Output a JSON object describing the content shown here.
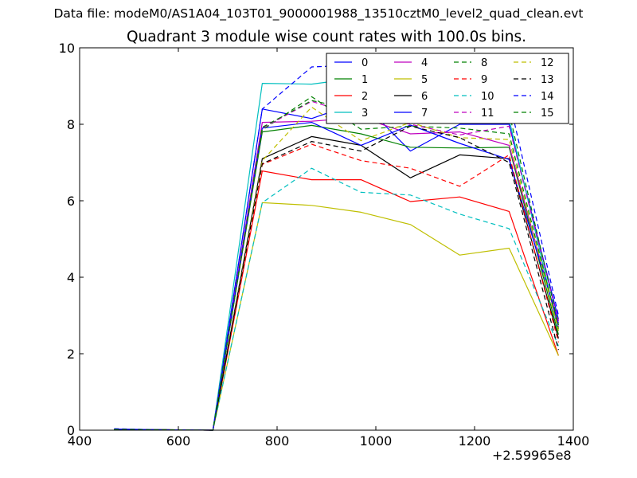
{
  "suptitle": "Data file: modeM0/AS1A04_103T01_9000001988_13510cztM0_level2_quad_clean.evt",
  "chart_data": {
    "type": "line",
    "title": "Quadrant 3 module wise count rates with 100.0s bins.",
    "xlabel": "",
    "ylabel": "",
    "x_offset_label": "+2.59965e8",
    "xlim": [
      400,
      1400
    ],
    "ylim": [
      0,
      10
    ],
    "xticks": [
      "400",
      "600",
      "800",
      "1000",
      "1200",
      "1400"
    ],
    "yticks": [
      "0",
      "2",
      "4",
      "6",
      "8",
      "10"
    ],
    "grid": false,
    "legend_position": "top-right",
    "legend_columns": 4,
    "x": [
      470,
      570,
      670,
      770,
      870,
      970,
      1070,
      1170,
      1270,
      1370
    ],
    "series": [
      {
        "name": "0",
        "color": "#0000ff",
        "dash": "solid",
        "values": [
          0.03,
          0.01,
          0,
          8.4,
          8.15,
          8.6,
          7.3,
          8.0,
          8.0,
          2.9
        ]
      },
      {
        "name": "1",
        "color": "#008000",
        "dash": "solid",
        "values": [
          0.02,
          0.01,
          0,
          7.8,
          7.97,
          7.75,
          7.4,
          7.38,
          7.4,
          2.5
        ]
      },
      {
        "name": "2",
        "color": "#ff0000",
        "dash": "solid",
        "values": [
          0.01,
          0.01,
          0,
          6.78,
          6.55,
          6.55,
          5.98,
          6.1,
          5.72,
          1.95
        ]
      },
      {
        "name": "3",
        "color": "#00bfbf",
        "dash": "solid",
        "values": [
          0.02,
          0.01,
          0,
          9.07,
          9.05,
          9.22,
          8.1,
          8.62,
          8.13,
          2.6
        ]
      },
      {
        "name": "4",
        "color": "#bf00bf",
        "dash": "solid",
        "values": [
          0.02,
          0.01,
          0,
          8.05,
          8.08,
          8.18,
          7.75,
          7.8,
          7.45,
          2.7
        ]
      },
      {
        "name": "5",
        "color": "#bfbf00",
        "dash": "solid",
        "values": [
          0.01,
          0.01,
          0,
          5.95,
          5.88,
          5.7,
          5.38,
          4.58,
          4.76,
          1.95
        ]
      },
      {
        "name": "6",
        "color": "#000000",
        "dash": "solid",
        "values": [
          0.02,
          0.01,
          0,
          7.1,
          7.68,
          7.45,
          6.6,
          7.2,
          7.1,
          2.4
        ]
      },
      {
        "name": "7",
        "color": "#0000ff",
        "dash": "solid",
        "values": [
          0.03,
          0.01,
          0,
          7.9,
          8.05,
          7.45,
          7.98,
          7.5,
          7.08,
          2.8
        ]
      },
      {
        "name": "8",
        "color": "#008000",
        "dash": "dashed",
        "values": [
          0.02,
          0.01,
          0,
          7.85,
          8.72,
          7.87,
          7.95,
          7.9,
          7.75,
          2.65
        ]
      },
      {
        "name": "9",
        "color": "#ff0000",
        "dash": "dashed",
        "values": [
          0.01,
          0.01,
          0,
          6.95,
          7.48,
          7.05,
          6.85,
          6.38,
          7.2,
          2.3
        ]
      },
      {
        "name": "10",
        "color": "#00bfbf",
        "dash": "dashed",
        "values": [
          0.01,
          0.01,
          0,
          5.95,
          6.85,
          6.22,
          6.15,
          5.65,
          5.27,
          2.2
        ]
      },
      {
        "name": "11",
        "color": "#bf00bf",
        "dash": "dashed",
        "values": [
          0.02,
          0.01,
          0,
          7.9,
          8.6,
          8.2,
          8.0,
          7.72,
          7.95,
          2.85
        ]
      },
      {
        "name": "12",
        "color": "#bfbf00",
        "dash": "dashed",
        "values": [
          0.02,
          0.01,
          0,
          7.05,
          8.45,
          7.57,
          8.05,
          7.65,
          7.6,
          2.6
        ]
      },
      {
        "name": "13",
        "color": "#000000",
        "dash": "dashed",
        "values": [
          0.02,
          0.01,
          0,
          6.97,
          7.55,
          7.3,
          7.95,
          7.65,
          7.0,
          2.1
        ]
      },
      {
        "name": "14",
        "color": "#0000ff",
        "dash": "dashed",
        "values": [
          0.04,
          0.01,
          0,
          8.4,
          9.5,
          9.55,
          8.9,
          8.72,
          8.65,
          3.0
        ]
      },
      {
        "name": "15",
        "color": "#008000",
        "dash": "dashed",
        "values": [
          0.02,
          0.01,
          0,
          7.92,
          8.62,
          8.35,
          8.5,
          8.42,
          8.3,
          2.75
        ]
      }
    ]
  }
}
